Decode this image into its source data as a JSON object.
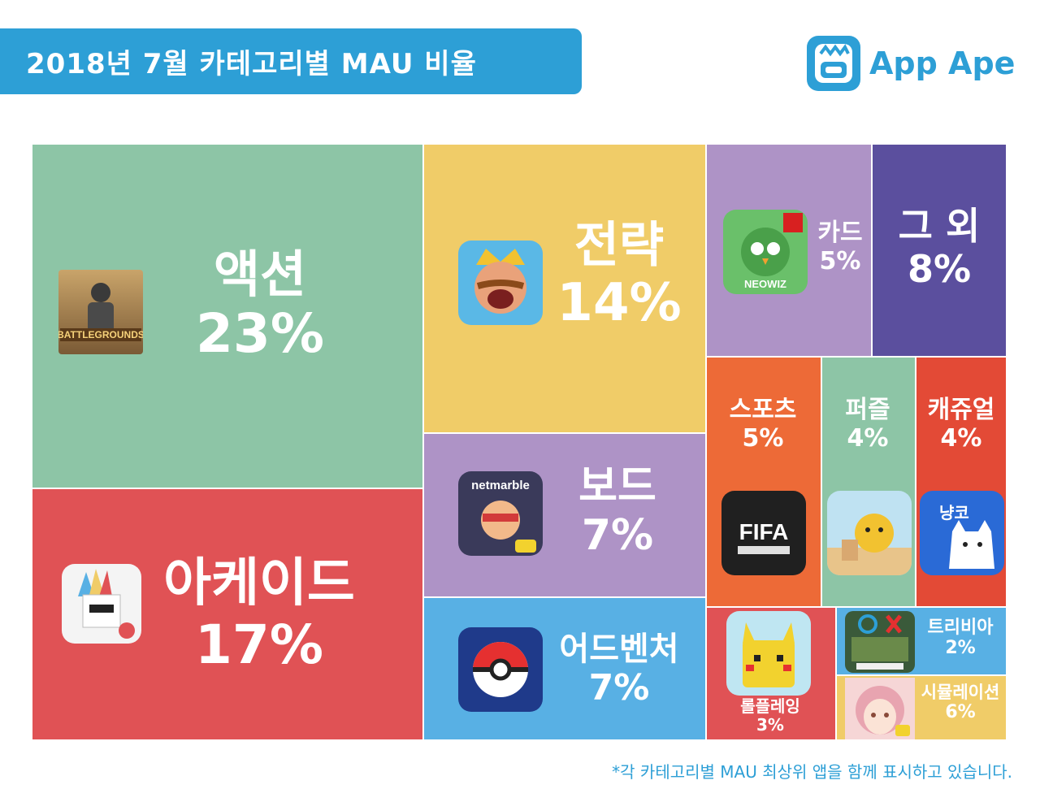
{
  "title": "2018년 7월 카테고리별 MAU 비율",
  "logo": {
    "text": "App Ape",
    "icon": "ape-face-icon"
  },
  "footnote": "*각 카테고리별 MAU 최상위 앱을 함께 표시하고 있습니다.",
  "colors": {
    "action": "#8dc5a6",
    "arcade": "#e05255",
    "strategy": "#f0cc68",
    "board": "#ae93c6",
    "adventure": "#58b0e4",
    "card": "#ae93c6",
    "other": "#5b4f9e",
    "sports": "#ed6a37",
    "puzzle": "#8dc5a6",
    "casual": "#e34a36",
    "roleplaying": "#e05255",
    "trivia": "#58b0e4",
    "simulation": "#f0cc68",
    "brand": "#2d9fd6"
  },
  "chart_data": {
    "type": "treemap",
    "title": "2018년 7월 카테고리별 MAU 비율",
    "unit": "%",
    "categories": [
      {
        "name": "액션",
        "value": 23,
        "label": "23%",
        "icon": "battlegrounds-app-icon"
      },
      {
        "name": "아케이드",
        "value": 17,
        "label": "17%",
        "icon": "arcade-app-icon"
      },
      {
        "name": "전략",
        "value": 14,
        "label": "14%",
        "icon": "clash-royale-app-icon"
      },
      {
        "name": "보드",
        "value": 7,
        "label": "7%",
        "icon": "netmarble-app-icon",
        "icon_text": "netmarble"
      },
      {
        "name": "어드벤처",
        "value": 7,
        "label": "7%",
        "icon": "pokemon-go-app-icon"
      },
      {
        "name": "카드",
        "value": 5,
        "label": "5%",
        "icon": "neowiz-app-icon",
        "icon_text": "NEOWIZ"
      },
      {
        "name": "그 외",
        "value": 8,
        "label": "8%"
      },
      {
        "name": "스포츠",
        "value": 5,
        "label": "5%",
        "icon": "fifa-online-app-icon",
        "icon_text": "FIFA"
      },
      {
        "name": "퍼즐",
        "value": 4,
        "label": "4%",
        "icon": "puzzle-app-icon"
      },
      {
        "name": "캐쥬얼",
        "value": 4,
        "label": "4%",
        "icon": "cat-app-icon",
        "icon_text": "냥코"
      },
      {
        "name": "롤플레잉",
        "value": 3,
        "label": "3%",
        "icon": "pikachu-app-icon"
      },
      {
        "name": "트리비아",
        "value": 2,
        "label": "2%",
        "icon": "trivia-app-icon"
      },
      {
        "name": "시뮬레이션",
        "value": 6,
        "label": "6%",
        "icon": "anime-girl-app-icon"
      }
    ]
  }
}
